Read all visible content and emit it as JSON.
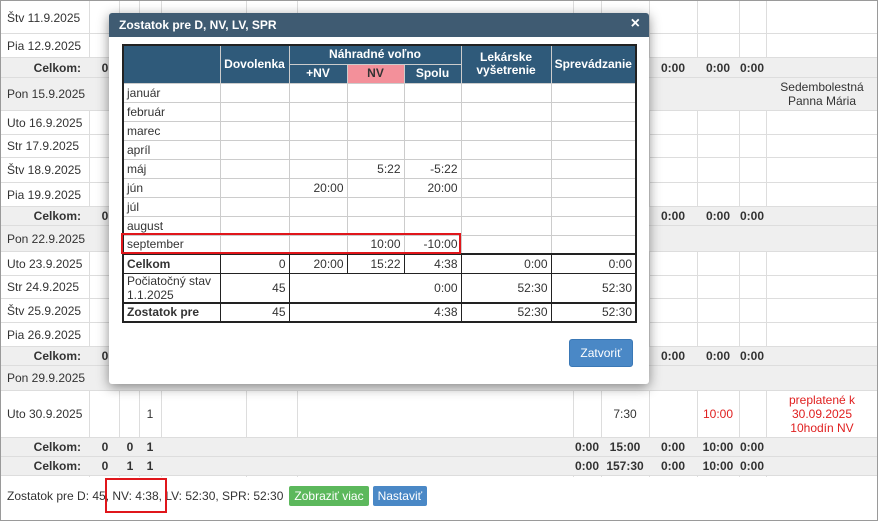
{
  "background": {
    "rows": [
      {
        "label": "Štv 11.9.2025"
      },
      {
        "label": "Pia 12.9.2025"
      },
      {
        "label": "Celkom:",
        "c1": "0",
        "c6": "0:00",
        "c7": "0:00",
        "c8": "0:00"
      },
      {
        "label": "Pon 15.9.2025",
        "note": "Sedembolestná Panna Mária"
      },
      {
        "label": "Uto 16.9.2025"
      },
      {
        "label": "Str 17.9.2025"
      },
      {
        "label": "Štv 18.9.2025"
      },
      {
        "label": "Pia 19.9.2025"
      },
      {
        "label": "Celkom:",
        "c1": "0",
        "c6": "0:00",
        "c7": "0:00",
        "c8": "0:00"
      },
      {
        "label": "Pon 22.9.2025"
      },
      {
        "label": "Uto 23.9.2025"
      },
      {
        "label": "Str 24.9.2025"
      },
      {
        "label": "Štv 25.9.2025"
      },
      {
        "label": "Pia 26.9.2025"
      },
      {
        "label": "Celkom:",
        "c1": "0",
        "c6": "0:00",
        "c7": "0:00",
        "c8": "0:00"
      },
      {
        "label": "Pon 29.9.2025"
      },
      {
        "label": "Uto 30.9.2025",
        "c3": "1",
        "c5": "7:30",
        "c7": "10:00",
        "note": "preplatené k 30.09.2025 10hodín NV"
      },
      {
        "label": "Celkom:",
        "c1": "0",
        "c2": "0",
        "c3": "1",
        "c4": "0:00",
        "c5": "15:00",
        "c6": "0:00",
        "c7": "10:00",
        "c8": "0:00"
      },
      {
        "label": "Celkom:",
        "c1": "0",
        "c2": "1",
        "c3": "1",
        "c4": "0:00",
        "c5": "157:30",
        "c6": "0:00",
        "c7": "10:00",
        "c8": "0:00"
      }
    ]
  },
  "modal": {
    "title": "Zostatok pre D, NV, LV, SPR",
    "close": "×",
    "headers": {
      "dovolenka": "Dovolenka",
      "nahradne": "Náhradné voľno",
      "plus_nv": "+NV",
      "nv": "NV",
      "spolu": "Spolu",
      "lekarske": "Lekárske vyšetrenie",
      "sprevadzanie": "Sprevádzanie"
    },
    "months": [
      {
        "month": "január"
      },
      {
        "month": "február"
      },
      {
        "month": "marec"
      },
      {
        "month": "apríl"
      },
      {
        "month": "máj",
        "nv": "5:22",
        "spolu": "-5:22"
      },
      {
        "month": "jún",
        "plus_nv": "20:00",
        "spolu": "20:00"
      },
      {
        "month": "júl"
      },
      {
        "month": "august"
      },
      {
        "month": "september",
        "nv": "10:00",
        "spolu": "-10:00"
      }
    ],
    "totals": [
      {
        "label": "Celkom",
        "dovolenka": "0",
        "plus_nv": "20:00",
        "nv": "15:22",
        "spolu": "4:38",
        "lekarske": "0:00",
        "sprevadzanie": "0:00"
      },
      {
        "label": "Počiatočný stav 1.1.2025",
        "dovolenka": "45",
        "spolu": "0:00",
        "lekarske": "52:30",
        "sprevadzanie": "52:30"
      },
      {
        "label": "Zostatok pre",
        "dovolenka": "45",
        "spolu": "4:38",
        "lekarske": "52:30",
        "sprevadzanie": "52:30"
      }
    ],
    "close_button": "Zatvoriť"
  },
  "footer": {
    "prefix": "Zostatok pre D: 45,",
    "nv": "NV: 4:38,",
    "rest": "LV: 52:30, SPR: 52:30",
    "more_button": "Zobraziť viac",
    "settings_button": "Nastaviť"
  }
}
